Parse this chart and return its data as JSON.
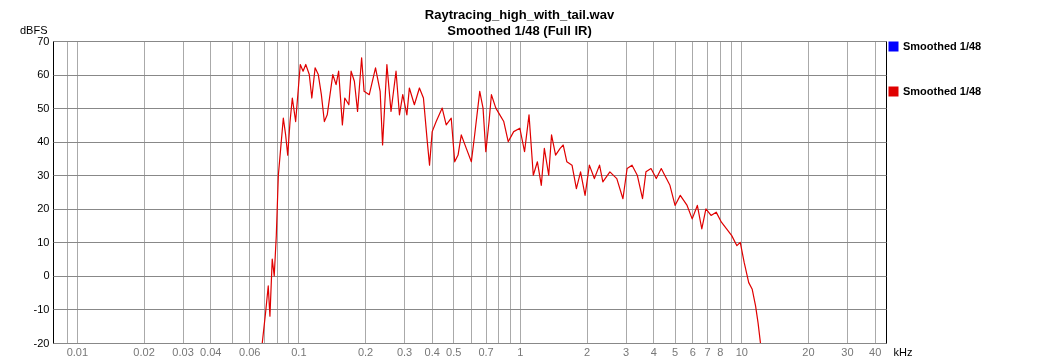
{
  "chart_data": {
    "type": "line",
    "title": "Raytracing_high_with_tail.wav",
    "subtitle": "Smoothed 1/48 (Full IR)",
    "xlabel": "kHz",
    "ylabel": "dBFS",
    "log": "x",
    "grid": true,
    "legend": "right",
    "line_style": "solid",
    "xlim": [
      0.0078,
      45
    ],
    "ylim": [
      -20,
      70
    ],
    "xticks": [
      {
        "value": 0.009,
        "label": null
      },
      0.01,
      0.02,
      0.03,
      0.04,
      {
        "value": 0.05,
        "label": null
      },
      0.06,
      {
        "value": 0.07,
        "label": null
      },
      {
        "value": 0.08,
        "label": null
      },
      {
        "value": 0.09,
        "label": null
      },
      0.1,
      0.2,
      0.3,
      0.4,
      0.5,
      {
        "value": 0.6,
        "label": null
      },
      0.7,
      {
        "value": 0.8,
        "label": null
      },
      {
        "value": 0.9,
        "label": null
      },
      1,
      2,
      3,
      4,
      5,
      6,
      7,
      8,
      {
        "value": 9,
        "label": null
      },
      10,
      20,
      30,
      40
    ],
    "yticks": [
      -20,
      -10,
      0,
      10,
      20,
      30,
      40,
      50,
      60,
      70
    ],
    "series": [
      {
        "name": "Smoothed 1/48",
        "color": "#0000ff"
      },
      {
        "name": "Smoothed 1/48",
        "color": "#e00000",
        "x": [
          0.0687,
          0.0711,
          0.0731,
          0.0744,
          0.0762,
          0.0778,
          0.0795,
          0.0812,
          0.0832,
          0.0855,
          0.0876,
          0.0895,
          0.0917,
          0.0939,
          0.0972,
          0.1,
          0.102,
          0.105,
          0.108,
          0.112,
          0.115,
          0.119,
          0.123,
          0.127,
          0.131,
          0.135,
          0.143,
          0.148,
          0.152,
          0.158,
          0.162,
          0.169,
          0.173,
          0.179,
          0.185,
          0.193,
          0.198,
          0.209,
          0.223,
          0.234,
          0.24,
          0.251,
          0.262,
          0.276,
          0.286,
          0.296,
          0.309,
          0.317,
          0.334,
          0.352,
          0.367,
          0.382,
          0.391,
          0.402,
          0.419,
          0.446,
          0.465,
          0.49,
          0.508,
          0.526,
          0.544,
          0.573,
          0.604,
          0.625,
          0.659,
          0.682,
          0.702,
          0.726,
          0.744,
          0.779,
          0.812,
          0.846,
          0.886,
          0.938,
          1.0,
          1.05,
          1.1,
          1.15,
          1.2,
          1.25,
          1.29,
          1.35,
          1.39,
          1.45,
          1.52,
          1.57,
          1.63,
          1.72,
          1.8,
          1.88,
          1.97,
          2.06,
          2.17,
          2.29,
          2.37,
          2.55,
          2.74,
          2.92,
          3.05,
          3.21,
          3.39,
          3.58,
          3.71,
          3.91,
          4.13,
          4.35,
          4.59,
          4.76,
          5.02,
          5.3,
          5.69,
          6.0,
          6.33,
          6.63,
          6.92,
          7.3,
          7.7,
          8.13,
          8.58,
          9.05,
          9.55,
          9.89,
          10.3,
          10.8,
          11.2,
          11.6,
          11.9,
          12.2
        ],
        "values": [
          -20,
          -11,
          -3,
          -12,
          5,
          0,
          12,
          30,
          38,
          47,
          42,
          36,
          46,
          53,
          46,
          56,
          63,
          61,
          63,
          60,
          53,
          62,
          60,
          54,
          46,
          48,
          60,
          57,
          61,
          45,
          53,
          51,
          61,
          58,
          49,
          65,
          55,
          54,
          62,
          55,
          39,
          63,
          49,
          61,
          48,
          54,
          48,
          56,
          51,
          56,
          53,
          40,
          33,
          43,
          46,
          50,
          45,
          47,
          34,
          36,
          42,
          38,
          34,
          42,
          55,
          50,
          37,
          46,
          54,
          50,
          48,
          46,
          40,
          43,
          44,
          37,
          48,
          30,
          34,
          27,
          38,
          30,
          42,
          36,
          38,
          39,
          34,
          33,
          26,
          31,
          24,
          33,
          29,
          33,
          28,
          31,
          29,
          23,
          32,
          33,
          30,
          23,
          31,
          32,
          29,
          32,
          29,
          27,
          21,
          24,
          21,
          17,
          21,
          14,
          20,
          18,
          19,
          16,
          14,
          12,
          9,
          10,
          4,
          -2,
          -4,
          -9,
          -14,
          -20
        ]
      }
    ]
  }
}
